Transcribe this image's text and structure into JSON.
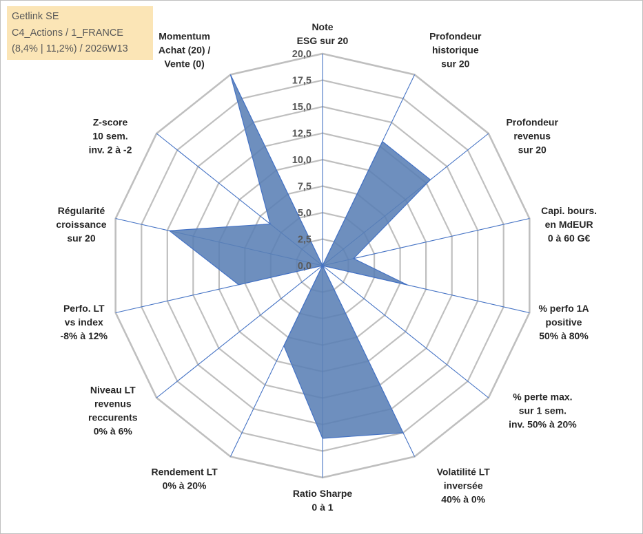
{
  "info": {
    "company": "Getlink SE",
    "universe": "C4_Actions / 1_FRANCE",
    "detail": "(8,4% | 11,2%) / 2026W13"
  },
  "chart_data": {
    "type": "radar",
    "title": "",
    "r_range": [
      0,
      20
    ],
    "r_ticks": [
      "0,0",
      "2,5",
      "5,0",
      "7,5",
      "10,0",
      "12,5",
      "15,0",
      "17,5",
      "20,0"
    ],
    "axes": [
      [
        "Note",
        "ESG sur 20"
      ],
      [
        "Profondeur",
        "historique",
        "sur 20"
      ],
      [
        "Profondeur",
        "revenus",
        "sur 20"
      ],
      [
        "Capi. bours.",
        "en MdEUR",
        "0 à 60 G€"
      ],
      [
        "% perfo 1A",
        "positive",
        "50% à 80%"
      ],
      [
        "% perte max.",
        "sur 1 sem.",
        "inv. 50% à 20%"
      ],
      [
        "Volatilité LT",
        "inversée",
        "40% à 0%"
      ],
      [
        "Ratio Sharpe",
        "0 à 1"
      ],
      [
        "Rendement LT",
        "0% à 20%"
      ],
      [
        "Niveau LT",
        "revenus",
        "reccurents",
        "0% à 6%"
      ],
      [
        "Perfo. LT",
        "vs index",
        "-8% à 12%"
      ],
      [
        "Régularité",
        "croissance",
        "sur 20"
      ],
      [
        "Z-score",
        "10 sem.",
        "inv. 2 à -2"
      ],
      [
        "Momentum",
        "Achat (20) /",
        "Vente (0)"
      ]
    ],
    "series": [
      {
        "name": "Getlink SE",
        "values": [
          0,
          13.0,
          13.0,
          3.0,
          8.2,
          0,
          17.5,
          16.3,
          8.4,
          0,
          8.1,
          14.8,
          6.3,
          20.0
        ]
      }
    ],
    "colors": {
      "fill": "#5a7fb5",
      "stroke": "#4472c4",
      "grid": "#bfbfbf",
      "spoke": "#4472c4"
    }
  }
}
